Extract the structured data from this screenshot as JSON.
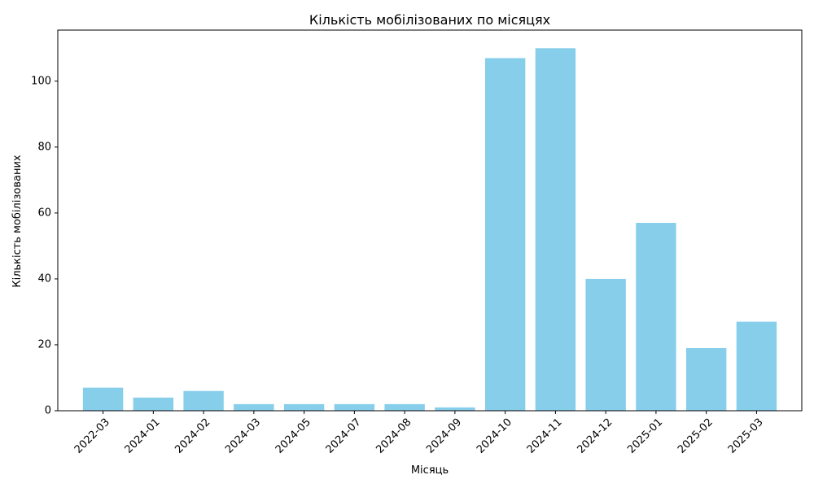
{
  "chart_data": {
    "type": "bar",
    "title": "Кількість мобілізованих по місяцях",
    "xlabel": "Місяць",
    "ylabel": "Кількість мобілізованих",
    "categories": [
      "2022-03",
      "2024-01",
      "2024-02",
      "2024-03",
      "2024-05",
      "2024-07",
      "2024-08",
      "2024-09",
      "2024-10",
      "2024-11",
      "2024-12",
      "2025-01",
      "2025-02",
      "2025-03"
    ],
    "values": [
      7,
      4,
      6,
      2,
      2,
      2,
      2,
      1,
      107,
      110,
      40,
      57,
      19,
      27
    ],
    "ylim": [
      0,
      115.5
    ],
    "yticks": [
      0,
      20,
      40,
      60,
      80,
      100
    ],
    "bar_color": "#87CEEB",
    "grid": false,
    "legend": "none"
  }
}
